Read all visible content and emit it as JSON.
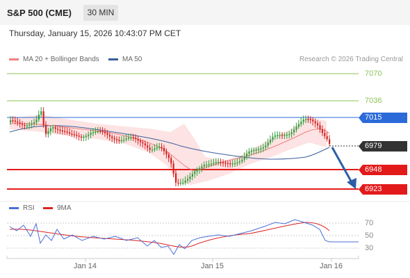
{
  "header": {
    "title": "S&P 500 (CME)",
    "timeframe": "30 MIN",
    "datetime": "Thursday, January 15, 2026 10:43:07 PM CET"
  },
  "legend": {
    "ma20_label": "MA 20 + Bollinger Bands",
    "ma50_label": "MA 50",
    "ma20_color": "#f08080",
    "ma50_color": "#3a5e9c"
  },
  "credit": "Research © 2026 Trading Central",
  "price_levels": {
    "r2": "7070",
    "r1": "7036",
    "pivot": "7015",
    "last": "6979",
    "s1": "6948",
    "s2": "6923"
  },
  "rsi_panel": {
    "rsi_label": "RSI",
    "ma_label": "9MA",
    "rsi_color": "#4a6fd6",
    "ma_color": "#e02020",
    "levels": [
      "70",
      "50",
      "30"
    ]
  },
  "x_axis": {
    "ticks": [
      "Jan 14",
      "Jan 15",
      "Jan 16"
    ]
  },
  "colors": {
    "resistance_green": "#8ac455",
    "pivot_blue": "#2b6ad9",
    "support_red": "#e31a1a",
    "last_dark": "#333333",
    "candle_up": "#2e9e3a",
    "candle_down": "#d42222",
    "arrow": "#2b5ea6"
  }
}
